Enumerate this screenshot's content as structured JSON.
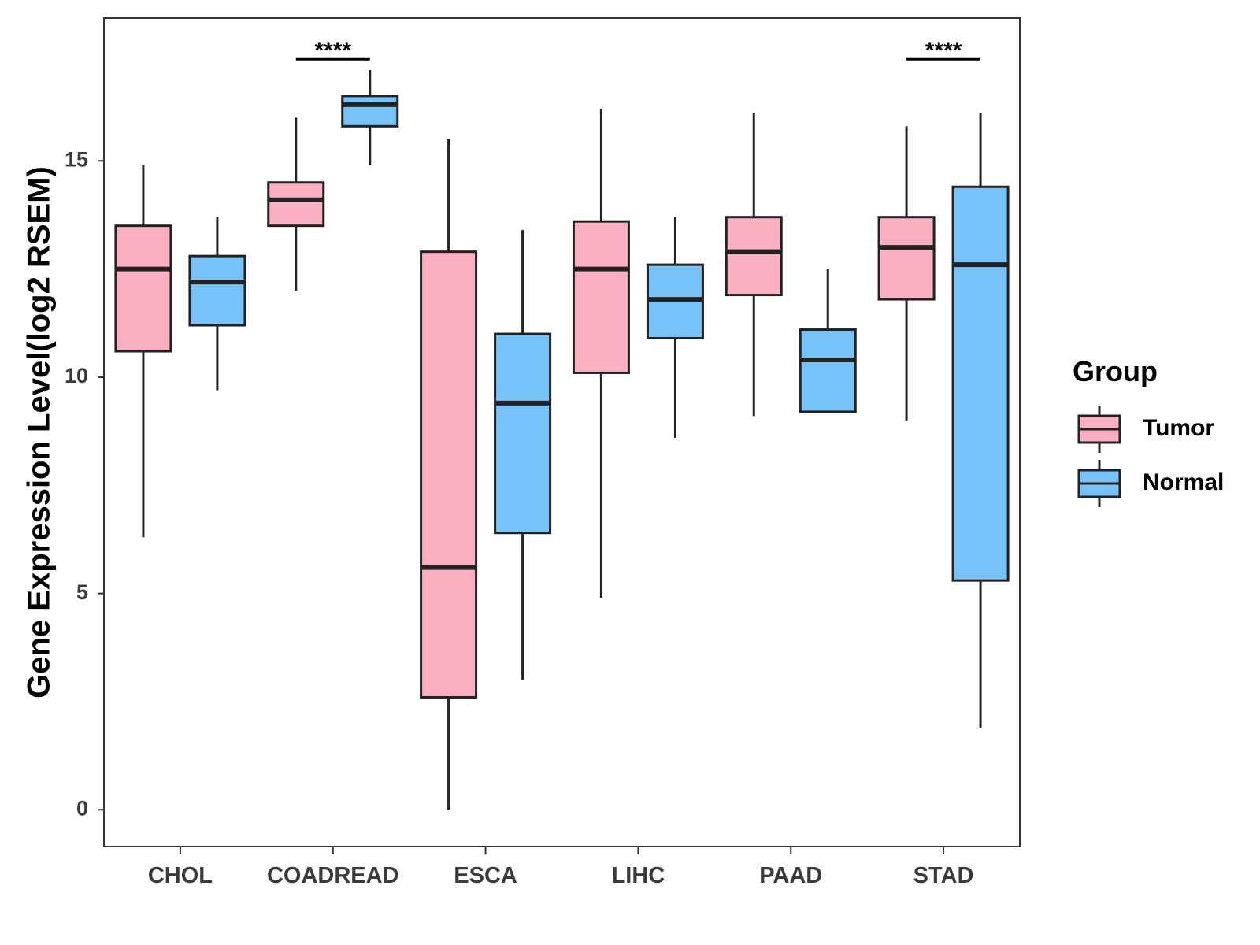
{
  "chart_data": {
    "type": "boxplot",
    "title": "",
    "xlabel": "",
    "ylabel": "Gene Expression Level(log2 RSEM)",
    "ylim": [
      -0.85,
      18.3
    ],
    "yticks": [
      0,
      5,
      10,
      15
    ],
    "grid": false,
    "categories": [
      "CHOL",
      "COADREAD",
      "ESCA",
      "LIHC",
      "PAAD",
      "STAD"
    ],
    "legend": {
      "title": "Group",
      "position": "right",
      "entries": [
        {
          "name": "Tumor",
          "color": "#FBB0C2"
        },
        {
          "name": "Normal",
          "color": "#77C2F8"
        }
      ]
    },
    "series": [
      {
        "name": "Tumor",
        "color": "#FBB0C2",
        "boxes": [
          {
            "whisker_low": 6.3,
            "q1": 10.6,
            "median": 12.5,
            "q3": 13.5,
            "whisker_high": 14.9
          },
          {
            "whisker_low": 12.0,
            "q1": 13.5,
            "median": 14.1,
            "q3": 14.5,
            "whisker_high": 16.0
          },
          {
            "whisker_low": 0.0,
            "q1": 2.6,
            "median": 5.6,
            "q3": 12.9,
            "whisker_high": 15.5
          },
          {
            "whisker_low": 4.9,
            "q1": 10.1,
            "median": 12.5,
            "q3": 13.6,
            "whisker_high": 16.2
          },
          {
            "whisker_low": 9.1,
            "q1": 11.9,
            "median": 12.9,
            "q3": 13.7,
            "whisker_high": 16.1
          },
          {
            "whisker_low": 9.0,
            "q1": 11.8,
            "median": 13.0,
            "q3": 13.7,
            "whisker_high": 15.8
          }
        ]
      },
      {
        "name": "Normal",
        "color": "#77C2F8",
        "boxes": [
          {
            "whisker_low": 9.7,
            "q1": 11.2,
            "median": 12.2,
            "q3": 12.8,
            "whisker_high": 13.7
          },
          {
            "whisker_low": 14.9,
            "q1": 15.8,
            "median": 16.3,
            "q3": 16.5,
            "whisker_high": 17.1
          },
          {
            "whisker_low": 3.0,
            "q1": 6.4,
            "median": 9.4,
            "q3": 11.0,
            "whisker_high": 13.4
          },
          {
            "whisker_low": 8.6,
            "q1": 10.9,
            "median": 11.8,
            "q3": 12.6,
            "whisker_high": 13.7
          },
          {
            "whisker_low": 9.2,
            "q1": 9.2,
            "median": 10.4,
            "q3": 11.1,
            "whisker_high": 12.5
          },
          {
            "whisker_low": 1.9,
            "q1": 5.3,
            "median": 12.6,
            "q3": 14.4,
            "whisker_high": 16.1
          }
        ]
      }
    ],
    "annotations": [
      {
        "category": "COADREAD",
        "text": "****",
        "y": 17.35
      },
      {
        "category": "STAD",
        "text": "****",
        "y": 17.35
      }
    ]
  }
}
